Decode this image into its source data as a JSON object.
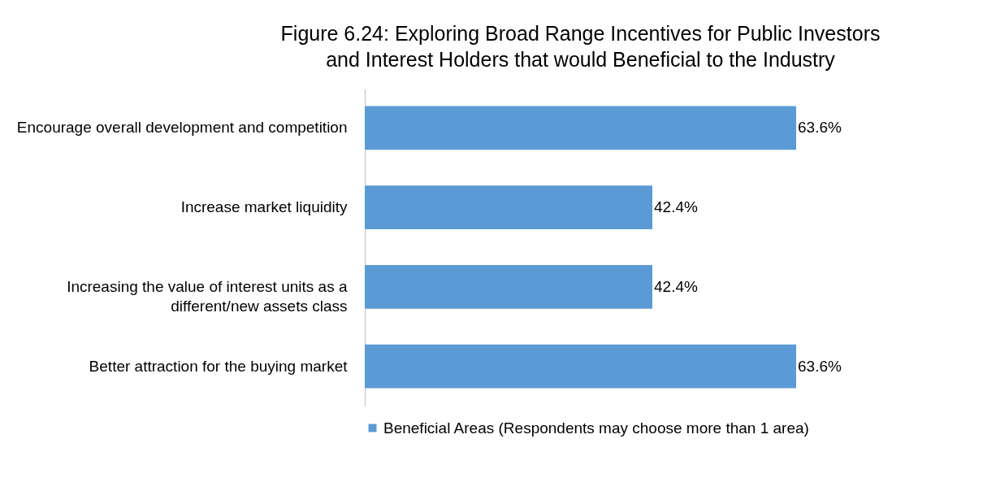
{
  "chart_data": {
    "type": "bar",
    "orientation": "horizontal",
    "title": "Figure 6.24: Exploring Broad Range Incentives for Public Investors and Interest Holders that would Beneficial to the Industry",
    "categories": [
      "Encourage overall development and competition",
      "Increase market liquidity",
      "Increasing the value of interest units as a different/new assets class",
      "Better attraction for the buying market"
    ],
    "series": [
      {
        "name": "Beneficial Areas (Respondents may choose more than 1 area)",
        "color": "#5b9bd5",
        "values": [
          63.6,
          42.4,
          42.4,
          63.6
        ],
        "value_labels": [
          "63.6%",
          "42.4%",
          "42.4%",
          "63.6%"
        ]
      }
    ],
    "legend": "bottom"
  }
}
